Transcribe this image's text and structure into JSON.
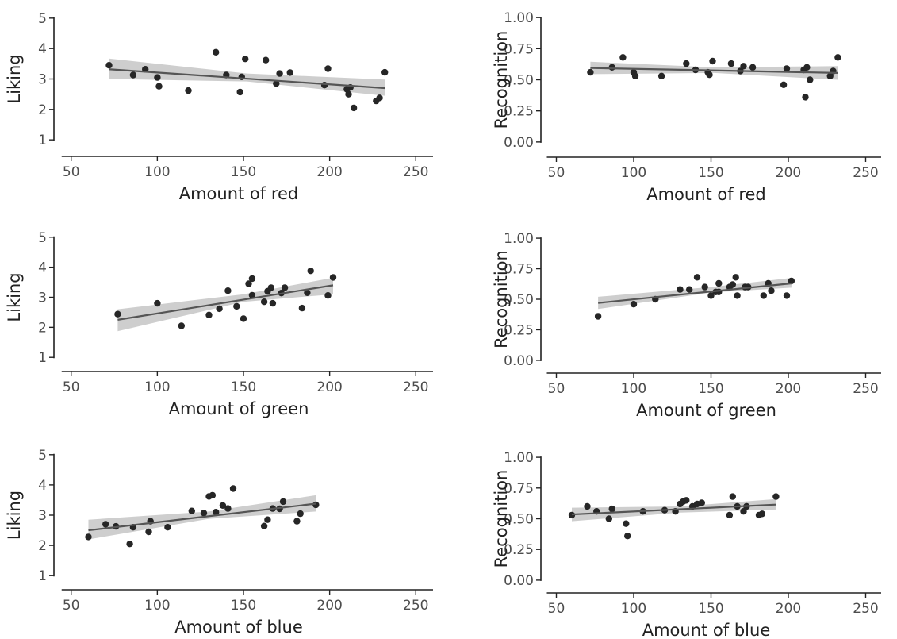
{
  "chart_data": [
    {
      "type": "scatter",
      "trend": "linear-with-ci",
      "xlabel": "Amount of red",
      "ylabel": "Liking",
      "xlim": [
        40,
        260
      ],
      "ylim": [
        0.9,
        5.1
      ],
      "xticks": [
        50,
        100,
        150,
        200,
        250
      ],
      "yticks": [
        1,
        2,
        3,
        4,
        5
      ],
      "x": [
        72,
        86,
        93,
        100,
        101,
        118,
        134,
        140,
        148,
        149,
        151,
        163,
        169,
        171,
        177,
        197,
        199,
        210,
        211,
        212,
        214,
        227,
        229,
        232
      ],
      "y": [
        3.45,
        3.13,
        3.32,
        3.05,
        2.76,
        2.62,
        3.88,
        3.13,
        2.57,
        3.07,
        3.66,
        3.62,
        2.85,
        3.18,
        3.21,
        2.8,
        3.34,
        2.66,
        2.5,
        2.72,
        2.05,
        2.28,
        2.38,
        3.22
      ],
      "fit": {
        "x": [
          72,
          232
        ],
        "y": [
          3.32,
          2.7
        ]
      },
      "ci": {
        "x": [
          72,
          152,
          232
        ],
        "lower": [
          3.0,
          2.92,
          2.45
        ],
        "upper": [
          3.67,
          3.18,
          2.98
        ]
      }
    },
    {
      "type": "scatter",
      "trend": "linear-with-ci",
      "xlabel": "Amount of red",
      "ylabel": "Recognition",
      "xlim": [
        40,
        260
      ],
      "ylim": [
        -0.02,
        1.02
      ],
      "xticks": [
        50,
        100,
        150,
        200,
        250
      ],
      "yticks": [
        "0.00",
        "0.25",
        "0.50",
        "0.75",
        "1.00"
      ],
      "x": [
        72,
        86,
        93,
        100,
        101,
        118,
        134,
        140,
        148,
        149,
        151,
        163,
        169,
        171,
        177,
        197,
        199,
        210,
        211,
        212,
        214,
        227,
        229,
        232
      ],
      "y": [
        0.56,
        0.6,
        0.68,
        0.56,
        0.53,
        0.53,
        0.63,
        0.58,
        0.56,
        0.54,
        0.65,
        0.63,
        0.57,
        0.61,
        0.6,
        0.46,
        0.59,
        0.58,
        0.36,
        0.6,
        0.5,
        0.53,
        0.57,
        0.68
      ],
      "fit": {
        "x": [
          72,
          232
        ],
        "y": [
          0.595,
          0.555
        ]
      },
      "ci": {
        "x": [
          72,
          152,
          232
        ],
        "lower": [
          0.545,
          0.555,
          0.5
        ],
        "upper": [
          0.645,
          0.6,
          0.61
        ]
      }
    },
    {
      "type": "scatter",
      "trend": "linear-with-ci",
      "xlabel": "Amount of green",
      "ylabel": "Liking",
      "xlim": [
        40,
        260
      ],
      "ylim": [
        0.9,
        5.1
      ],
      "xticks": [
        50,
        100,
        150,
        200,
        250
      ],
      "yticks": [
        1,
        2,
        3,
        4,
        5
      ],
      "x": [
        77,
        100,
        114,
        130,
        136,
        141,
        146,
        150,
        153,
        155,
        155,
        162,
        164,
        166,
        167,
        172,
        174,
        184,
        187,
        189,
        199,
        202
      ],
      "y": [
        2.44,
        2.8,
        2.05,
        2.41,
        2.62,
        3.22,
        2.7,
        2.29,
        3.45,
        3.62,
        3.07,
        2.85,
        3.2,
        3.32,
        2.8,
        3.14,
        3.32,
        2.64,
        3.15,
        3.88,
        3.06,
        3.66
      ],
      "fit": {
        "x": [
          77,
          202
        ],
        "y": [
          2.25,
          3.4
        ]
      },
      "ci": {
        "x": [
          77,
          150,
          202
        ],
        "lower": [
          1.87,
          2.85,
          3.1
        ],
        "upper": [
          2.6,
          3.1,
          3.65
        ]
      }
    },
    {
      "type": "scatter",
      "trend": "linear-with-ci",
      "xlabel": "Amount of green",
      "ylabel": "Recognition",
      "xlim": [
        40,
        260
      ],
      "ylim": [
        -0.02,
        1.02
      ],
      "xticks": [
        50,
        100,
        150,
        200,
        250
      ],
      "yticks": [
        "0.00",
        "0.25",
        "0.50",
        "0.75",
        "1.00"
      ],
      "x": [
        77,
        100,
        114,
        130,
        136,
        141,
        146,
        150,
        153,
        155,
        155,
        162,
        164,
        166,
        167,
        172,
        174,
        184,
        187,
        189,
        199,
        202
      ],
      "y": [
        0.36,
        0.46,
        0.5,
        0.58,
        0.58,
        0.68,
        0.6,
        0.53,
        0.56,
        0.63,
        0.56,
        0.6,
        0.62,
        0.68,
        0.53,
        0.6,
        0.6,
        0.53,
        0.63,
        0.57,
        0.53,
        0.65
      ],
      "fit": {
        "x": [
          77,
          202
        ],
        "y": [
          0.47,
          0.63
        ]
      },
      "ci": {
        "x": [
          77,
          150,
          202
        ],
        "lower": [
          0.42,
          0.555,
          0.595
        ],
        "upper": [
          0.52,
          0.6,
          0.675
        ]
      }
    },
    {
      "type": "scatter",
      "trend": "linear-with-ci",
      "xlabel": "Amount of blue",
      "ylabel": "Liking",
      "xlim": [
        40,
        260
      ],
      "ylim": [
        0.9,
        5.1
      ],
      "xticks": [
        50,
        100,
        150,
        200,
        250
      ],
      "yticks": [
        1,
        2,
        3,
        4,
        5
      ],
      "x": [
        60,
        70,
        76,
        84,
        86,
        95,
        96,
        106,
        120,
        127,
        130,
        132,
        134,
        138,
        141,
        144,
        162,
        164,
        167,
        171,
        173,
        181,
        183,
        192
      ],
      "y": [
        2.28,
        2.7,
        2.63,
        2.05,
        2.6,
        2.45,
        2.8,
        2.6,
        3.14,
        3.07,
        3.62,
        3.66,
        3.1,
        3.32,
        3.22,
        3.88,
        2.64,
        2.85,
        3.22,
        3.21,
        3.45,
        2.8,
        3.05,
        3.34
      ],
      "fit": {
        "x": [
          60,
          192
        ],
        "y": [
          2.5,
          3.38
        ]
      },
      "ci": {
        "x": [
          60,
          130,
          192
        ],
        "lower": [
          2.2,
          2.88,
          3.12
        ],
        "upper": [
          2.85,
          3.12,
          3.66
        ]
      }
    },
    {
      "type": "scatter",
      "trend": "linear-with-ci",
      "xlabel": "Amount of blue",
      "ylabel": "Recognition",
      "xlim": [
        40,
        260
      ],
      "ylim": [
        -0.02,
        1.02
      ],
      "xticks": [
        50,
        100,
        150,
        200,
        250
      ],
      "yticks": [
        "0.00",
        "0.25",
        "0.50",
        "0.75",
        "1.00"
      ],
      "x": [
        60,
        70,
        76,
        84,
        86,
        95,
        96,
        106,
        120,
        127,
        130,
        132,
        134,
        138,
        141,
        144,
        162,
        164,
        167,
        171,
        173,
        181,
        183,
        192
      ],
      "y": [
        0.53,
        0.6,
        0.56,
        0.5,
        0.58,
        0.46,
        0.36,
        0.56,
        0.57,
        0.56,
        0.62,
        0.64,
        0.65,
        0.6,
        0.62,
        0.63,
        0.53,
        0.68,
        0.6,
        0.56,
        0.6,
        0.53,
        0.54,
        0.68
      ],
      "fit": {
        "x": [
          60,
          192
        ],
        "y": [
          0.535,
          0.615
        ]
      },
      "ci": {
        "x": [
          60,
          130,
          192
        ],
        "lower": [
          0.48,
          0.55,
          0.575
        ],
        "upper": [
          0.59,
          0.6,
          0.66
        ]
      }
    }
  ]
}
